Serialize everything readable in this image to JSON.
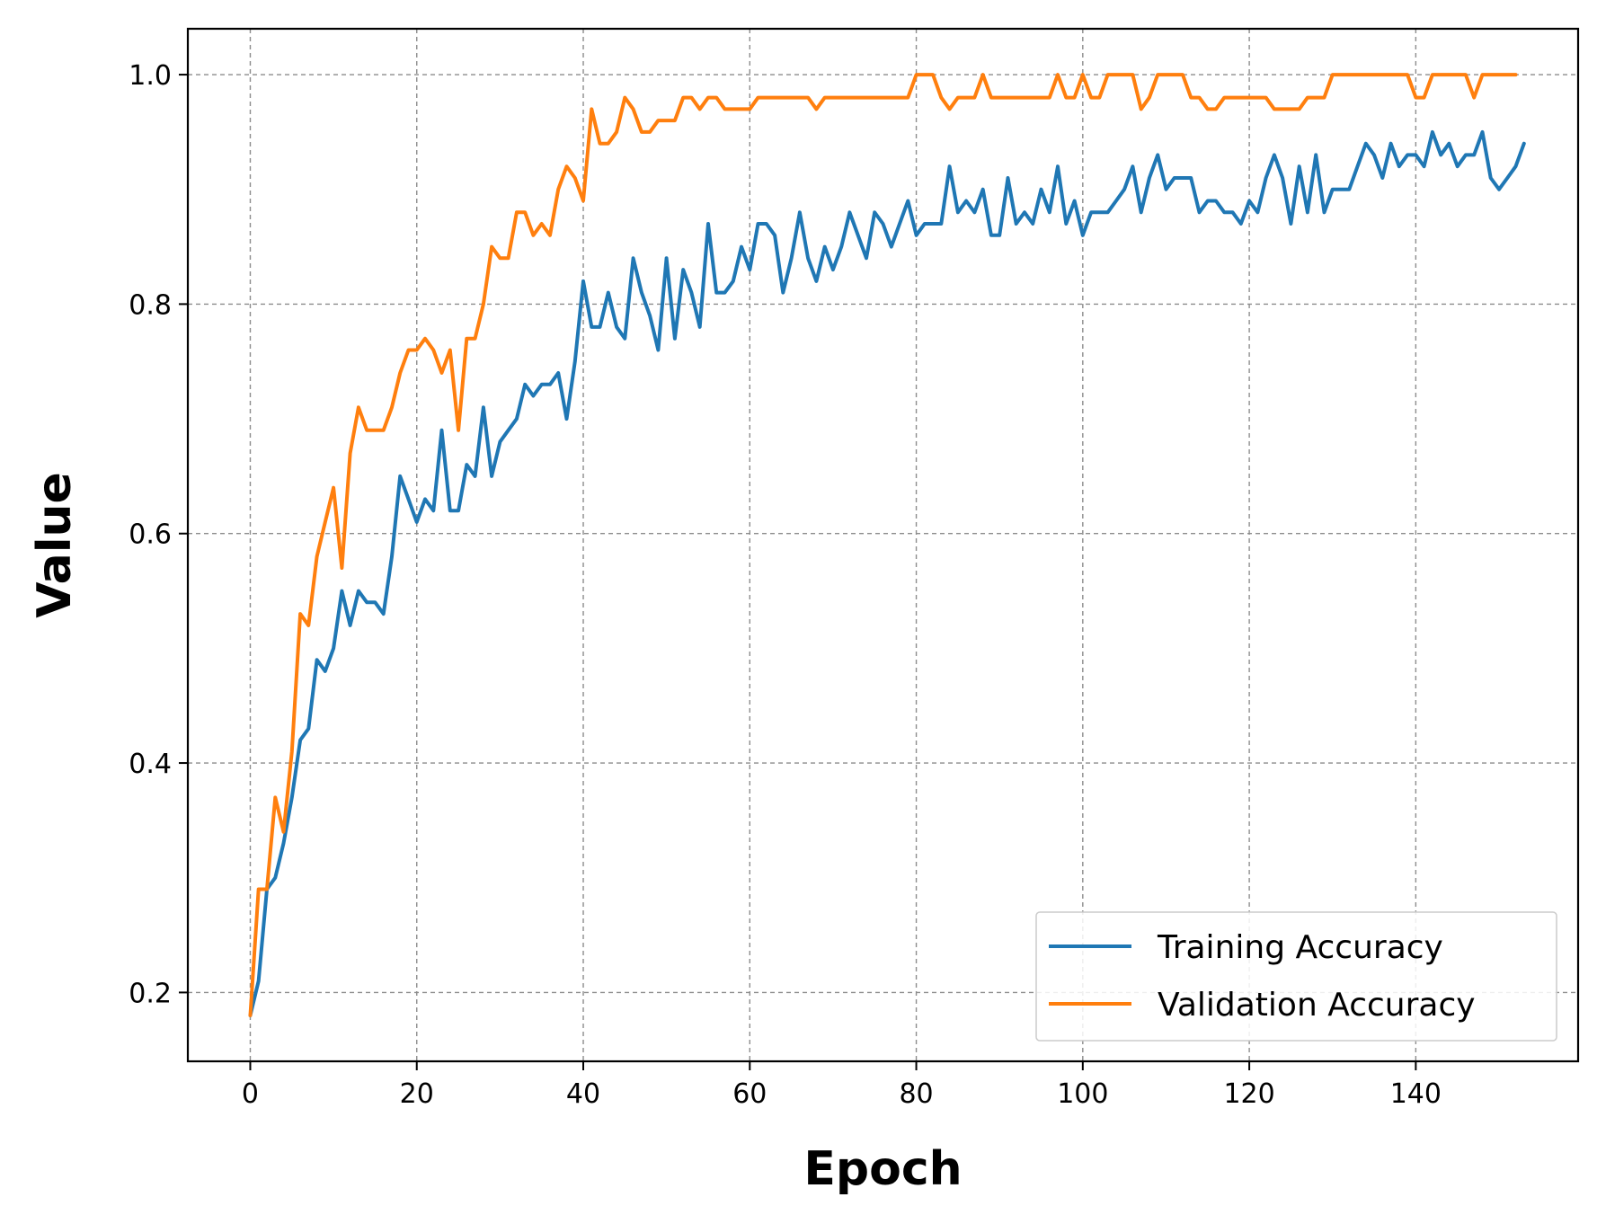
{
  "chart_data": {
    "type": "line",
    "title": "",
    "xlabel": "Epoch",
    "ylabel": "Value",
    "xlim": [
      -7.5,
      159.5
    ],
    "ylim": [
      0.14,
      1.04
    ],
    "xticks": [
      0,
      20,
      40,
      60,
      80,
      100,
      120,
      140
    ],
    "yticks": [
      0.2,
      0.4,
      0.6,
      0.8,
      1.0
    ],
    "xtick_labels": [
      "0",
      "20",
      "40",
      "60",
      "80",
      "100",
      "120",
      "140"
    ],
    "ytick_labels": [
      "0.2",
      "0.4",
      "0.6",
      "0.8",
      "1.0"
    ],
    "grid": true,
    "legend_position": "bottom-right",
    "series": [
      {
        "name": "Training Accuracy",
        "color": "#1f77b4",
        "values": [
          0.18,
          0.21,
          0.29,
          0.3,
          0.33,
          0.37,
          0.42,
          0.43,
          0.49,
          0.48,
          0.5,
          0.55,
          0.52,
          0.55,
          0.54,
          0.54,
          0.53,
          0.58,
          0.65,
          0.63,
          0.61,
          0.63,
          0.62,
          0.69,
          0.62,
          0.62,
          0.66,
          0.65,
          0.71,
          0.65,
          0.68,
          0.69,
          0.7,
          0.73,
          0.72,
          0.73,
          0.73,
          0.74,
          0.7,
          0.75,
          0.82,
          0.78,
          0.78,
          0.81,
          0.78,
          0.77,
          0.84,
          0.81,
          0.79,
          0.76,
          0.84,
          0.77,
          0.83,
          0.81,
          0.78,
          0.87,
          0.81,
          0.81,
          0.82,
          0.85,
          0.83,
          0.87,
          0.87,
          0.86,
          0.81,
          0.84,
          0.88,
          0.84,
          0.82,
          0.85,
          0.83,
          0.85,
          0.88,
          0.86,
          0.84,
          0.88,
          0.87,
          0.85,
          0.87,
          0.89,
          0.86,
          0.87,
          0.87,
          0.87,
          0.92,
          0.88,
          0.89,
          0.88,
          0.9,
          0.86,
          0.86,
          0.91,
          0.87,
          0.88,
          0.87,
          0.9,
          0.88,
          0.92,
          0.87,
          0.89,
          0.86,
          0.88,
          0.88,
          0.88,
          0.89,
          0.9,
          0.92,
          0.88,
          0.91,
          0.93,
          0.9,
          0.91,
          0.91,
          0.91,
          0.88,
          0.89,
          0.89,
          0.88,
          0.88,
          0.87,
          0.89,
          0.88,
          0.91,
          0.93,
          0.91,
          0.87,
          0.92,
          0.88,
          0.93,
          0.88,
          0.9,
          0.9,
          0.9,
          0.92,
          0.94,
          0.93,
          0.91,
          0.94,
          0.92,
          0.93,
          0.93,
          0.92,
          0.95,
          0.93,
          0.94,
          0.92,
          0.93,
          0.93,
          0.95,
          0.91,
          0.9,
          0.91,
          0.92,
          0.94
        ],
        "x_start": 0
      },
      {
        "name": "Validation Accuracy",
        "color": "#ff7f0e",
        "values": [
          0.18,
          0.29,
          0.29,
          0.37,
          0.34,
          0.41,
          0.53,
          0.52,
          0.58,
          0.61,
          0.64,
          0.57,
          0.67,
          0.71,
          0.69,
          0.69,
          0.69,
          0.71,
          0.74,
          0.76,
          0.76,
          0.77,
          0.76,
          0.74,
          0.76,
          0.69,
          0.77,
          0.77,
          0.8,
          0.85,
          0.84,
          0.84,
          0.88,
          0.88,
          0.86,
          0.87,
          0.86,
          0.9,
          0.92,
          0.91,
          0.89,
          0.97,
          0.94,
          0.94,
          0.95,
          0.98,
          0.97,
          0.95,
          0.95,
          0.96,
          0.96,
          0.96,
          0.98,
          0.98,
          0.97,
          0.98,
          0.98,
          0.97,
          0.97,
          0.97,
          0.97,
          0.98,
          0.98,
          0.98,
          0.98,
          0.98,
          0.98,
          0.98,
          0.97,
          0.98,
          0.98,
          0.98,
          0.98,
          0.98,
          0.98,
          0.98,
          0.98,
          0.98,
          0.98,
          0.98,
          1.0,
          1.0,
          1.0,
          0.98,
          0.97,
          0.98,
          0.98,
          0.98,
          1.0,
          0.98,
          0.98,
          0.98,
          0.98,
          0.98,
          0.98,
          0.98,
          0.98,
          1.0,
          0.98,
          0.98,
          1.0,
          0.98,
          0.98,
          1.0,
          1.0,
          1.0,
          1.0,
          0.97,
          0.98,
          1.0,
          1.0,
          1.0,
          1.0,
          0.98,
          0.98,
          0.97,
          0.97,
          0.98,
          0.98,
          0.98,
          0.98,
          0.98,
          0.98,
          0.97,
          0.97,
          0.97,
          0.97,
          0.98,
          0.98,
          0.98,
          1.0,
          1.0,
          1.0,
          1.0,
          1.0,
          1.0,
          1.0,
          1.0,
          1.0,
          1.0,
          0.98,
          0.98,
          1.0,
          1.0,
          1.0,
          1.0,
          1.0,
          0.98,
          1.0,
          1.0,
          1.0,
          1.0,
          1.0
        ],
        "x_start": 0
      }
    ]
  }
}
